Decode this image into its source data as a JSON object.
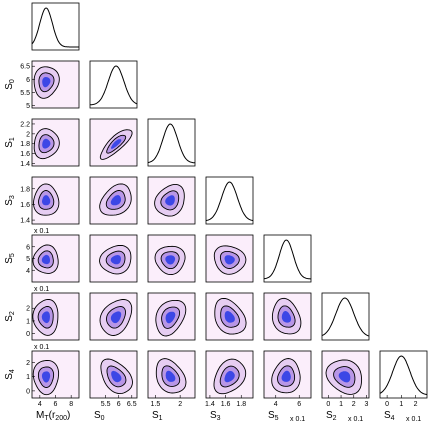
{
  "chart_data": {
    "type": "corner",
    "parameters": [
      {
        "label": [
          {
            "text": "M"
          },
          {
            "text": "T",
            "sub": true
          },
          {
            "text": "(r"
          },
          {
            "text": "200",
            "sub": true
          },
          {
            "text": ")"
          }
        ],
        "lim": [
          3,
          9
        ],
        "xticks": [
          4,
          6,
          8
        ],
        "yticks": [],
        "mean": 4.8,
        "sd": 0.8
      },
      {
        "label": [
          {
            "text": "S"
          },
          {
            "text": "0",
            "sub": true
          }
        ],
        "lim": [
          4.9,
          6.7
        ],
        "xticks": [
          5.5,
          6,
          6.5
        ],
        "yticks": [
          5,
          5.5,
          6,
          6.5
        ],
        "mean": 5.9,
        "sd": 0.3
      },
      {
        "label": [
          {
            "text": "S"
          },
          {
            "text": "1",
            "sub": true
          }
        ],
        "lim": [
          1.35,
          2.3
        ],
        "xticks": [
          1.5,
          2
        ],
        "yticks": [
          1.4,
          1.6,
          1.8,
          2,
          2.2
        ],
        "mean": 1.8,
        "sd": 0.15
      },
      {
        "label": [
          {
            "text": "S"
          },
          {
            "text": "3",
            "sub": true
          }
        ],
        "lim": [
          1.35,
          1.95
        ],
        "xticks": [
          1.4,
          1.6,
          1.8
        ],
        "yticks": [
          1.4,
          1.6,
          1.8
        ],
        "mean": 1.65,
        "sd": 0.1
      },
      {
        "label": [
          {
            "text": "S"
          },
          {
            "text": "5",
            "sub": true
          }
        ],
        "lim": [
          3,
          7
        ],
        "xticks": [
          4,
          6
        ],
        "yticks": [
          4,
          5,
          6
        ],
        "mean": 4.9,
        "sd": 0.6,
        "scale_label": "x 0.1"
      },
      {
        "label": [
          {
            "text": "S"
          },
          {
            "text": "2",
            "sub": true
          }
        ],
        "lim": [
          -0.5,
          3.2
        ],
        "xticks": [
          0,
          1,
          2,
          3
        ],
        "yticks": [
          0,
          1,
          2
        ],
        "mean": 1.3,
        "sd": 0.7,
        "scale_label": "x 0.1"
      },
      {
        "label": [
          {
            "text": "S"
          },
          {
            "text": "4",
            "sub": true
          }
        ],
        "lim": [
          -0.5,
          2.8
        ],
        "xticks": [
          0,
          1,
          2
        ],
        "yticks": [
          0,
          1,
          2
        ],
        "mean": 1.0,
        "sd": 0.6,
        "scale_label": "x 0.1"
      }
    ],
    "correlations": [
      [],
      [
        0.1
      ],
      [
        0.1,
        0.8
      ],
      [
        0,
        0.3,
        0.2
      ],
      [
        0,
        0.1,
        0,
        -0.1
      ],
      [
        0,
        0.3,
        0.3,
        -0.3,
        -0.2
      ],
      [
        0,
        -0.4,
        -0.3,
        0.3,
        0.1,
        -0.2
      ]
    ],
    "colors": {
      "background": "#fbeefb",
      "outer": "#e6cdf2",
      "inner": "#b896e6",
      "core": "#2f3ee6",
      "line": "#000000"
    }
  }
}
